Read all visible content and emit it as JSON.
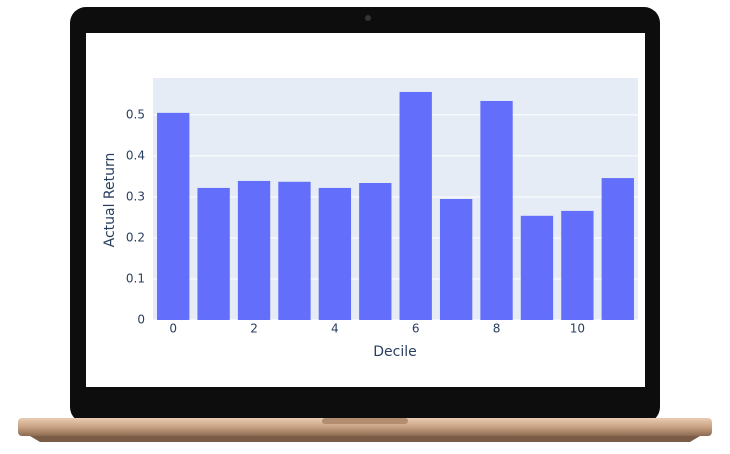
{
  "chart_data": {
    "type": "bar",
    "x": [
      0,
      1,
      2,
      3,
      4,
      5,
      6,
      7,
      8,
      9,
      10,
      11
    ],
    "values": [
      0.505,
      0.322,
      0.339,
      0.337,
      0.322,
      0.334,
      0.556,
      0.295,
      0.534,
      0.254,
      0.266,
      0.346
    ],
    "color": "#636efa",
    "x_label": "Decile",
    "y_label": "Actual Return",
    "xlim": [
      -0.5,
      11.5
    ],
    "xticks": [
      0,
      2,
      4,
      6,
      8,
      10
    ],
    "ylim": [
      0,
      0.59
    ],
    "yticks": [
      0,
      0.1,
      0.2,
      0.3,
      0.4,
      0.5
    ],
    "grid": true
  }
}
